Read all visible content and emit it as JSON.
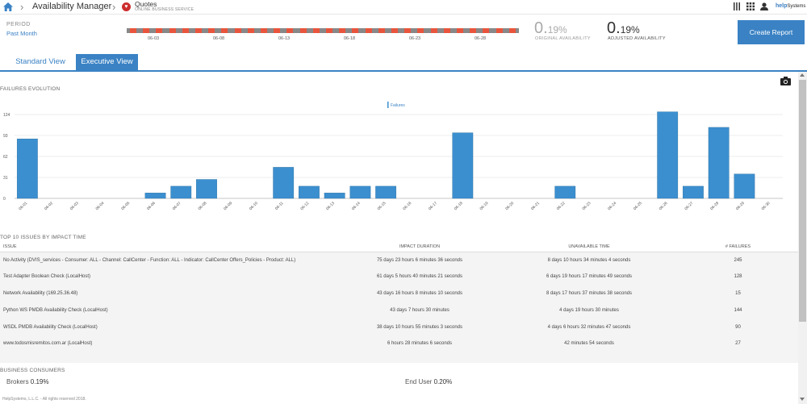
{
  "header": {
    "app_title": "Availability Manager",
    "service_name": "Quotes",
    "service_type": "ONLINE BUSINESS SERVICE",
    "logo_main": "help",
    "logo_sub": "Systems",
    "icons": [
      "home-icon",
      "heart-icon",
      "columns-icon",
      "grid-icon",
      "user-icon"
    ]
  },
  "period": {
    "label": "PERIOD",
    "value": "Past Month",
    "timeline_ticks": [
      "06-03",
      "06-08",
      "06-13",
      "06-18",
      "06-23",
      "06-28"
    ]
  },
  "availability": {
    "original_value": "0.",
    "original_decimals": "19%",
    "original_label": "ORIGINAL AVAILABILITY",
    "adjusted_value": "0.",
    "adjusted_decimals": "19%",
    "adjusted_label": "ADJUSTED AVAILABILITY"
  },
  "actions": {
    "create_report": "Create Report"
  },
  "tabs": {
    "standard": "Standard View",
    "executive": "Executive View"
  },
  "chart_section": {
    "title": "FAILURES EVOLUTION"
  },
  "chart_data": {
    "type": "bar",
    "title": "",
    "legend": [
      "Failures"
    ],
    "legend_position": "top-center",
    "categories": [
      "06-01",
      "06-02",
      "06-03",
      "06-04",
      "06-05",
      "06-06",
      "06-07",
      "06-08",
      "06-09",
      "06-10",
      "06-11",
      "06-12",
      "06-13",
      "06-14",
      "06-15",
      "06-16",
      "06-17",
      "06-18",
      "06-19",
      "06-20",
      "06-21",
      "06-22",
      "06-23",
      "06-24",
      "06-25",
      "06-26",
      "06-27",
      "06-28",
      "06-29",
      "06-30"
    ],
    "values": [
      88,
      0,
      0,
      0,
      0,
      8,
      18,
      28,
      0,
      0,
      46,
      18,
      8,
      18,
      18,
      0,
      0,
      97,
      0,
      0,
      0,
      18,
      0,
      0,
      0,
      128,
      18,
      105,
      36,
      0
    ],
    "yticks": [
      0,
      31,
      62,
      93,
      124
    ],
    "ylim": [
      0,
      124
    ],
    "grid": true,
    "color": "#3b8fcf"
  },
  "top10": {
    "title": "TOP 10 ISSUES BY IMPACT TIME",
    "columns": [
      "ISSUE",
      "IMPACT DURATION",
      "UNAVAILABLE TIME",
      "# FAILURES"
    ],
    "rows": [
      [
        "No Activity (DVIS_services - Consumer: ALL - Channel: CallCenter - Function: ALL - Indicator: CallCenter Offers_Policies - Product: ALL)",
        "75 days 23 hours 6 minutes 36 seconds",
        "8 days 10 hours 34 minutes 4 seconds",
        "245"
      ],
      [
        "Test Adapter Boolean Check (LocalHost)",
        "61 days 5 hours 40 minutes 21 seconds",
        "6 days 19 hours 17 minutes 49 seconds",
        "128"
      ],
      [
        "Network Availability (169.25.36.48)",
        "43 days 16 hours 8 minutes 10 seconds",
        "8 days 17 hours 37 minutes 38 seconds",
        "15"
      ],
      [
        "Python WS PMDB Availability Check (LocalHost)",
        "43 days 7 hours 30 minutes",
        "4 days 19 hours 30 minutes",
        "144"
      ],
      [
        "WSDL PMDB Availability Check (LocalHost)",
        "38 days 10 hours 55 minutes 3 seconds",
        "4 days 6 hours 32 minutes 47 seconds",
        "90"
      ],
      [
        "www.todosmisremitos.com.ar (LocalHost)",
        "6 hours 28 minutes 6 seconds",
        "42 minutes 54 seconds",
        "27"
      ]
    ]
  },
  "business_consumers": {
    "title": "BUSINESS CONSUMERS",
    "items": [
      {
        "name": "Brokers",
        "value": "0.19%"
      },
      {
        "name": "End User",
        "value": "0.20%"
      }
    ]
  },
  "footer": {
    "text": "HelpSystems, L.L.C. - All rights reserved 2018."
  }
}
